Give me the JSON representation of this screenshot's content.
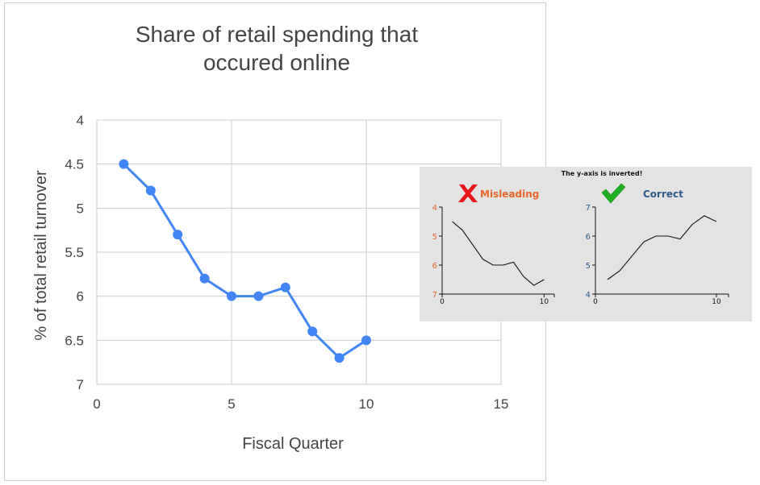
{
  "chart_data": [
    {
      "type": "line",
      "title": "Share of retail spending that occured online",
      "title_lines": [
        "Share of retail spending that",
        "occured online"
      ],
      "xlabel": "Fiscal Quarter",
      "ylabel": "% of total retail turnover",
      "xlim": [
        0,
        15
      ],
      "ylim": [
        4,
        7
      ],
      "y_inverted": true,
      "grid": true,
      "x_ticks": [
        "0",
        "5",
        "10",
        "15"
      ],
      "y_ticks": [
        "4",
        "4.5",
        "5",
        "5.5",
        "6",
        "6.5",
        "7"
      ],
      "series": [
        {
          "color": "#4285f4",
          "x": [
            1,
            2,
            3,
            4,
            5,
            6,
            7,
            8,
            9,
            10
          ],
          "y": [
            4.5,
            4.8,
            5.3,
            5.8,
            6.0,
            6.0,
            5.9,
            6.4,
            6.7,
            6.5
          ]
        }
      ]
    },
    {
      "type": "line",
      "title": "The y-axis is inverted!",
      "label": "Misleading",
      "label_color": "#e8652a",
      "marker_icon": "red-cross-icon",
      "xlim": [
        0,
        11
      ],
      "ylim": [
        4,
        7
      ],
      "y_inverted": true,
      "x_ticks": [
        "0",
        "10"
      ],
      "y_ticks": [
        "4",
        "5",
        "6",
        "7"
      ],
      "series": [
        {
          "color": "#111111",
          "x": [
            1,
            2,
            3,
            4,
            5,
            6,
            7,
            8,
            9,
            10
          ],
          "y": [
            4.5,
            4.8,
            5.3,
            5.8,
            6.0,
            6.0,
            5.9,
            6.4,
            6.7,
            6.5
          ]
        }
      ]
    },
    {
      "type": "line",
      "label": "Correct",
      "label_color": "#2e5a8c",
      "marker_icon": "green-check-icon",
      "xlim": [
        0,
        11
      ],
      "ylim": [
        4,
        7
      ],
      "y_inverted": false,
      "x_ticks": [
        "0",
        "10"
      ],
      "y_ticks": [
        "7",
        "6",
        "5",
        "4"
      ],
      "series": [
        {
          "color": "#111111",
          "x": [
            1,
            2,
            3,
            4,
            5,
            6,
            7,
            8,
            9,
            10
          ],
          "y": [
            4.5,
            4.8,
            5.3,
            5.8,
            6.0,
            6.0,
            5.9,
            6.4,
            6.7,
            6.5
          ]
        }
      ]
    }
  ]
}
